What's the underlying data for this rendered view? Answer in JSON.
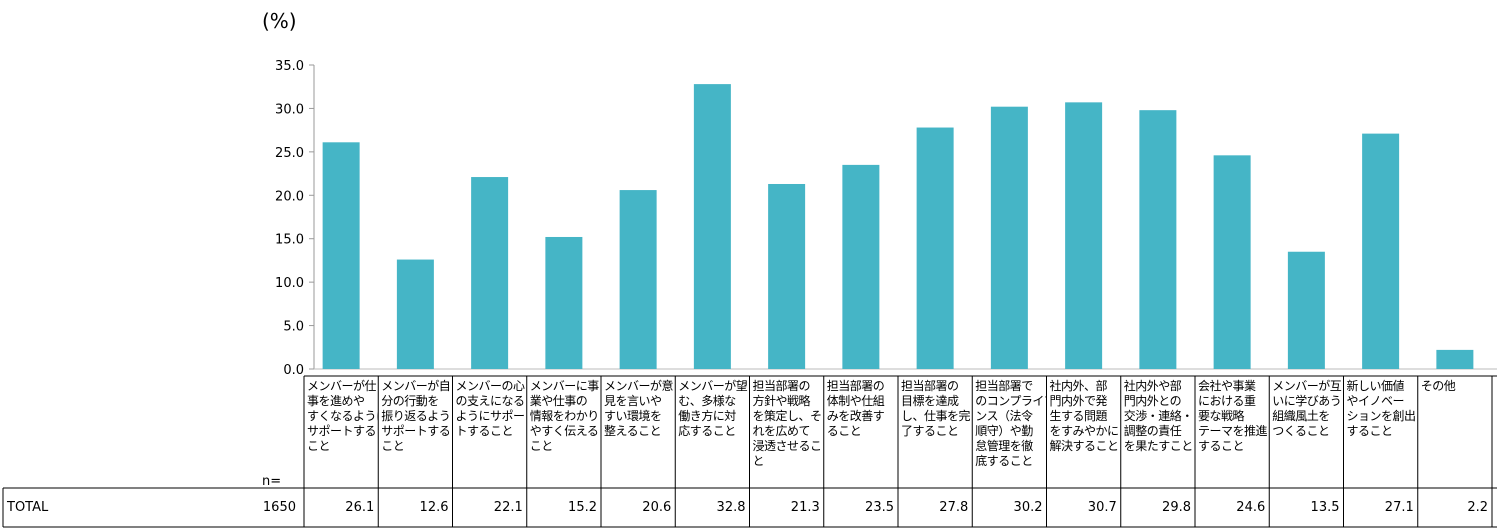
{
  "chart_data": {
    "type": "bar",
    "unit_label": "(%)",
    "ylim": [
      0,
      35
    ],
    "yticks": [
      "0.0",
      "5.0",
      "10.0",
      "15.0",
      "20.0",
      "25.0",
      "30.0",
      "35.0"
    ],
    "bar_color": "#45b5c6",
    "categories": [
      "メンバーが仕事を進めやすくなるようにサポートすること",
      "メンバーが自分の行動を振り返るようサポートすること",
      "メンバーの心の支えになるようにサポートすること",
      "メンバーに事業や仕事の情報をわかりやすく伝えること",
      "メンバーが意見を言いやすい環境を整えること",
      "メンバーが望む、多様な働き方に対応すること",
      "担当部署の方針や戦略を策定し、それを広めて浸透させること",
      "担当部署の体制や仕組みを改善すること",
      "担当部署の目標を達成し、仕事を完了すること",
      "担当部署でのコンプライアンス（法令順守）や勤怠管理を徹底すること",
      "社内外、部門内外で発生する問題をすみやかに解決すること",
      "社内外や部門内外との交渉・連絡・調整の責任を果たすこと",
      "会社や事業における重要な戦略テーマを推進すること",
      "メンバーが互いに学びあう組織風土をつくること",
      "新しい価値やイノベーションを創出すること",
      "その他"
    ],
    "category_lines": [
      [
        "メンバーが仕",
        "事を進めや",
        "すくなるように",
        "サポートする",
        "こと"
      ],
      [
        "メンバーが自",
        "分の行動を",
        "振り返るよう",
        "サポートする",
        "こと"
      ],
      [
        "メンバーの心",
        "の支えになる",
        "ようにサポー",
        "トすること"
      ],
      [
        "メンバーに事",
        "業や仕事の",
        "情報をわかり",
        "やすく伝える",
        "こと"
      ],
      [
        "メンバーが意",
        "見を言いや",
        "すい環境を",
        "整えること"
      ],
      [
        "メンバーが望",
        "む、多様な",
        "働き方に対",
        "応すること"
      ],
      [
        "担当部署の",
        "方針や戦略",
        "を策定し、そ",
        "れを広めて",
        "浸透させるこ",
        "と"
      ],
      [
        "担当部署の",
        "体制や仕組",
        "みを改善す",
        "ること"
      ],
      [
        "担当部署の",
        "目標を達成",
        "し、仕事を完",
        "了すること"
      ],
      [
        "担当部署で",
        "のコンプライア",
        "ンス（法令",
        "順守）や勤",
        "怠管理を徹",
        "底すること"
      ],
      [
        "社内外、部",
        "門内外で発",
        "生する問題",
        "をすみやかに",
        "解決すること"
      ],
      [
        "社内外や部",
        "門内外との",
        "交渉・連絡・",
        "調整の責任",
        "を果たすこと"
      ],
      [
        "会社や事業",
        "における重",
        "要な戦略",
        "テーマを推進",
        "すること"
      ],
      [
        "メンバーが互",
        "いに学びあう",
        "組織風土を",
        "つくること"
      ],
      [
        "新しい価値",
        "やイノベー",
        "ションを創出",
        "すること"
      ],
      [
        "その他"
      ]
    ],
    "values": [
      26.1,
      12.6,
      22.1,
      15.2,
      20.6,
      32.8,
      21.3,
      23.5,
      27.8,
      30.2,
      30.7,
      29.8,
      24.6,
      13.5,
      27.1,
      2.2
    ],
    "value_labels": [
      "26.1",
      "12.6",
      "22.1",
      "15.2",
      "20.6",
      "32.8",
      "21.3",
      "23.5",
      "27.8",
      "30.2",
      "30.7",
      "29.8",
      "24.6",
      "13.5",
      "27.1",
      "2.2"
    ]
  },
  "table": {
    "n_header": "n=",
    "row_label": "TOTAL",
    "n_value": "1650"
  }
}
